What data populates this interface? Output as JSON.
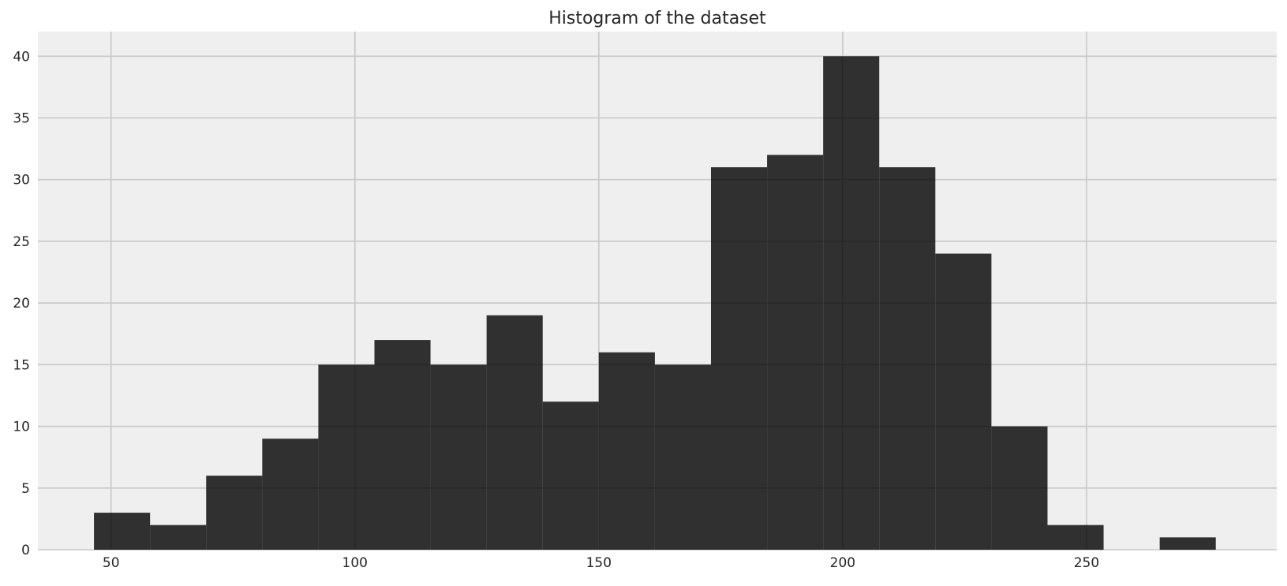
{
  "chart_data": {
    "type": "bar",
    "title": "Histogram of the dataset",
    "xlabel": "",
    "ylabel": "",
    "bin_edges": [
      46.5,
      58.0,
      69.5,
      81.0,
      92.5,
      104.0,
      115.5,
      127.0,
      138.5,
      150.0,
      161.5,
      173.0,
      184.5,
      196.0,
      207.5,
      219.0,
      230.5,
      242.0,
      253.5,
      265.0,
      276.5
    ],
    "values": [
      3,
      2,
      6,
      9,
      15,
      17,
      15,
      19,
      12,
      16,
      15,
      31,
      32,
      40,
      31,
      24,
      10,
      2,
      0,
      1
    ],
    "xlim": [
      35,
      289
    ],
    "ylim": [
      0,
      42
    ],
    "x_ticks": [
      50,
      100,
      150,
      200,
      250
    ],
    "y_ticks": [
      0,
      5,
      10,
      15,
      20,
      25,
      30,
      35,
      40
    ],
    "grid": true,
    "bar_color": "#000000",
    "bar_opacity": 0.8,
    "background_color": "#efefef",
    "grid_color": "#c8c8c8"
  }
}
